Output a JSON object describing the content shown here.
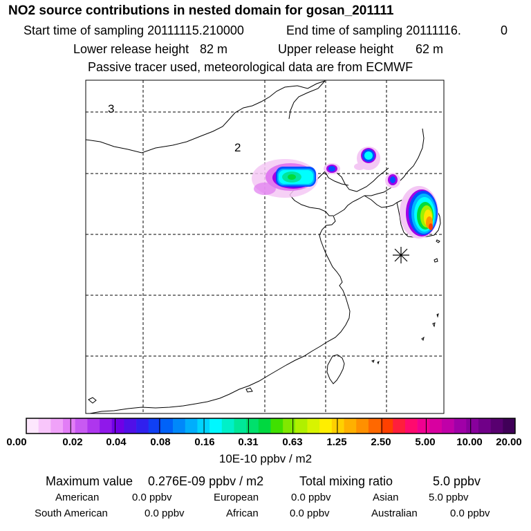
{
  "header": {
    "title": "NO2 source contributions in nested domain for gosan_201111",
    "start_label": "Start time of sampling 20111115.210000",
    "end_label": "End time of sampling 20111116.",
    "end_value": "0",
    "lower_label": "Lower release height",
    "lower_value": "82 m",
    "upper_label": "Upper release height",
    "upper_value": "62 m",
    "note": "Passive tracer used, meteorological data are from ECMWF"
  },
  "map": {
    "region_labels": [
      "3",
      "2"
    ],
    "plume_colors": {
      "white": "#ffffff",
      "pale_pink": "#f4c8f4",
      "magenta": "#e07af0",
      "purple": "#a000e8",
      "violet": "#6000f0",
      "blue": "#0050ff",
      "sky": "#00b4ff",
      "cyan": "#00ffff",
      "teal": "#00e6a0",
      "green": "#00dc3c",
      "lime": "#a0f000",
      "yellow": "#ffe600",
      "orange": "#ff9600",
      "red": "#ff3c00"
    }
  },
  "colorbar": {
    "colors": [
      "#fde7fd",
      "#f8c6fb",
      "#f0a2f9",
      "#e27df6",
      "#c85af2",
      "#ae36ee",
      "#9018ea",
      "#7000e6",
      "#5010e8",
      "#3020ee",
      "#1040f4",
      "#0062f8",
      "#0088fa",
      "#00aefc",
      "#00d4fe",
      "#00f8ff",
      "#00f0c8",
      "#00e898",
      "#00e06c",
      "#00d840",
      "#40e000",
      "#80e800",
      "#b0f000",
      "#d8f400",
      "#ffee00",
      "#ffd000",
      "#ffb000",
      "#ff9000",
      "#ff6800",
      "#ff4000",
      "#ff1e3c",
      "#ff0a6e",
      "#f00090",
      "#d800a0",
      "#c000a8",
      "#a000a8",
      "#88009c",
      "#700088",
      "#580070",
      "#400058"
    ],
    "ticks": [
      "0.00",
      "0.02",
      "0.04",
      "0.08",
      "0.16",
      "0.31",
      "0.63",
      "1.25",
      "2.50",
      "5.00",
      "10.00",
      "20.00"
    ],
    "unit": "10E-10 ppbv / m2"
  },
  "stats": {
    "max_label": "Maximum value",
    "max_value": "0.276E-09 ppbv / m2",
    "total_label": "Total mixing ratio",
    "total_value": "5.0 ppbv",
    "regions": [
      {
        "name": "American",
        "value": "0.0 ppbv"
      },
      {
        "name": "European",
        "value": "0.0 ppbv"
      },
      {
        "name": "Asian",
        "value": "5.0 ppbv"
      },
      {
        "name": "South American",
        "value": "0.0 ppbv"
      },
      {
        "name": "African",
        "value": "0.0 ppbv"
      },
      {
        "name": "Australian",
        "value": "0.0 ppbv"
      }
    ]
  }
}
